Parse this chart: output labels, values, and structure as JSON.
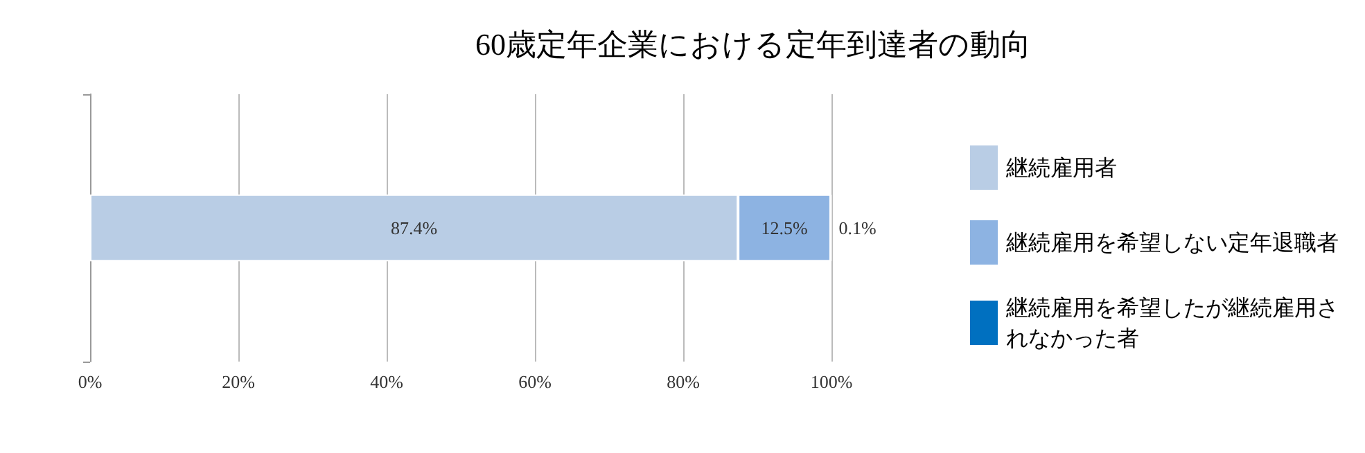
{
  "chart_data": {
    "type": "bar",
    "title": "60歳定年企業における定年到達者の動向",
    "orientation": "horizontal",
    "stacked": true,
    "categories": [
      null
    ],
    "series": [
      {
        "name": "継続雇用者",
        "color": "#b9cde5",
        "values": [
          87.4
        ],
        "value_labels": [
          "87.4%"
        ]
      },
      {
        "name": "継続雇用を希望しない定年退職者",
        "color": "#8db3e2",
        "values": [
          12.5
        ],
        "value_labels": [
          "12.5%"
        ]
      },
      {
        "name": "継続雇用を希望したが継続雇用されなかった者",
        "color": "#0070c0",
        "values": [
          0.1
        ],
        "value_labels": [
          "0.1%"
        ]
      }
    ],
    "xlim": [
      0,
      100
    ],
    "xticks": [
      {
        "value": 0,
        "label": "0%"
      },
      {
        "value": 20,
        "label": "20%"
      },
      {
        "value": 40,
        "label": "40%"
      },
      {
        "value": 60,
        "label": "60%"
      },
      {
        "value": 80,
        "label": "80%"
      },
      {
        "value": 100,
        "label": "100%"
      }
    ],
    "grid": "x",
    "legend": "right"
  }
}
